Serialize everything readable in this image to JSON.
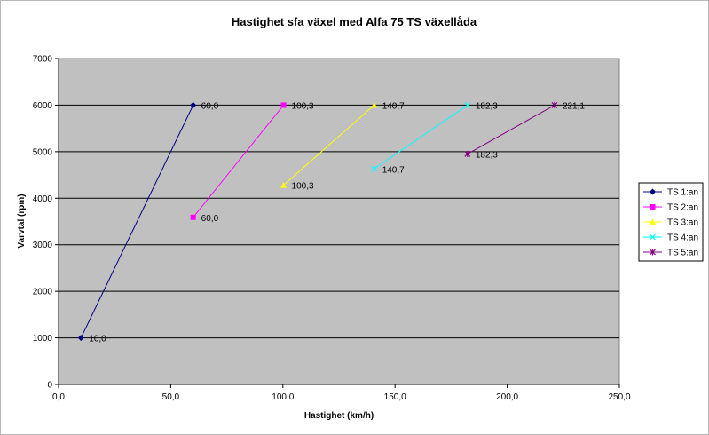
{
  "chart_data": {
    "type": "line",
    "title": "Hastighet sfa växel med Alfa 75 TS växellåda",
    "xlabel": "Hastighet (km/h)",
    "ylabel": "Varvtal (rpm)",
    "xlim": [
      0,
      250
    ],
    "ylim": [
      0,
      7000
    ],
    "x_ticks": [
      0,
      50,
      100,
      150,
      200,
      250
    ],
    "x_tick_labels": [
      "0,0",
      "50,0",
      "100,0",
      "150,0",
      "200,0",
      "250,0"
    ],
    "y_ticks": [
      0,
      1000,
      2000,
      3000,
      4000,
      5000,
      6000,
      7000
    ],
    "y_tick_labels": [
      "0",
      "1000",
      "2000",
      "3000",
      "4000",
      "5000",
      "6000",
      "7000"
    ],
    "grid": "horizontal",
    "plot_background": "#c0c0c0",
    "legend_position": "right",
    "series": [
      {
        "name": "TS 1:an",
        "color": "#000080",
        "marker": "diamond",
        "points": [
          {
            "x": 10.0,
            "y": 1000,
            "label": "10,0"
          },
          {
            "x": 60.0,
            "y": 6000,
            "label": "60,0"
          }
        ]
      },
      {
        "name": "TS 2:an",
        "color": "#ff00ff",
        "marker": "square",
        "points": [
          {
            "x": 60.0,
            "y": 3590,
            "label": "60,0"
          },
          {
            "x": 100.3,
            "y": 6000,
            "label": "100,3"
          }
        ]
      },
      {
        "name": "TS 3:an",
        "color": "#ffff00",
        "marker": "triangle",
        "points": [
          {
            "x": 100.3,
            "y": 4280,
            "label": "100,3"
          },
          {
            "x": 140.7,
            "y": 6000,
            "label": "140,7"
          }
        ]
      },
      {
        "name": "TS 4:an",
        "color": "#00ffff",
        "marker": "x",
        "points": [
          {
            "x": 140.7,
            "y": 4630,
            "label": "140,7"
          },
          {
            "x": 182.3,
            "y": 6000,
            "label": "182,3"
          }
        ]
      },
      {
        "name": "TS 5:an",
        "color": "#800080",
        "marker": "star",
        "points": [
          {
            "x": 182.3,
            "y": 4950,
            "label": "182,3"
          },
          {
            "x": 221.1,
            "y": 6000,
            "label": "221,1"
          }
        ]
      }
    ]
  }
}
